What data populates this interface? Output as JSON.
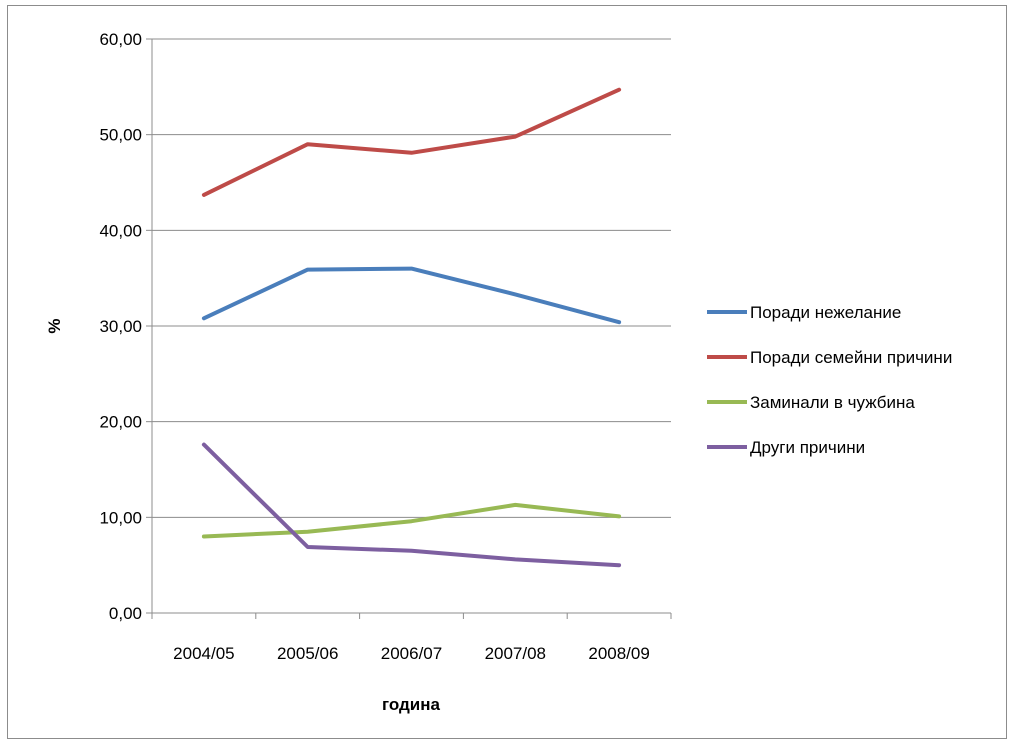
{
  "chart_data": {
    "type": "line",
    "title": "",
    "xlabel": "година",
    "ylabel": "%",
    "categories": [
      "2004/05",
      "2005/06",
      "2006/07",
      "2007/08",
      "2008/09"
    ],
    "ylim": [
      0,
      60
    ],
    "yticks": [
      0,
      10,
      20,
      30,
      40,
      50,
      60
    ],
    "ytick_labels": [
      "0,00",
      "10,00",
      "20,00",
      "30,00",
      "40,00",
      "50,00",
      "60,00"
    ],
    "grid": "horizontal",
    "legend_position": "right",
    "series": [
      {
        "name": "Поради нежелание",
        "color": "#4a7ebb",
        "values": [
          30.8,
          35.9,
          36.0,
          33.3,
          30.4
        ]
      },
      {
        "name": "Поради семейни причини",
        "color": "#be4b48",
        "values": [
          43.7,
          49.0,
          48.1,
          49.8,
          54.7
        ]
      },
      {
        "name": "Заминали  в чужбина",
        "color": "#98b954",
        "values": [
          8.0,
          8.5,
          9.6,
          11.3,
          10.1
        ]
      },
      {
        "name": "Други причини",
        "color": "#7d5fa0",
        "values": [
          17.6,
          6.9,
          6.5,
          5.6,
          5.0
        ]
      }
    ]
  }
}
